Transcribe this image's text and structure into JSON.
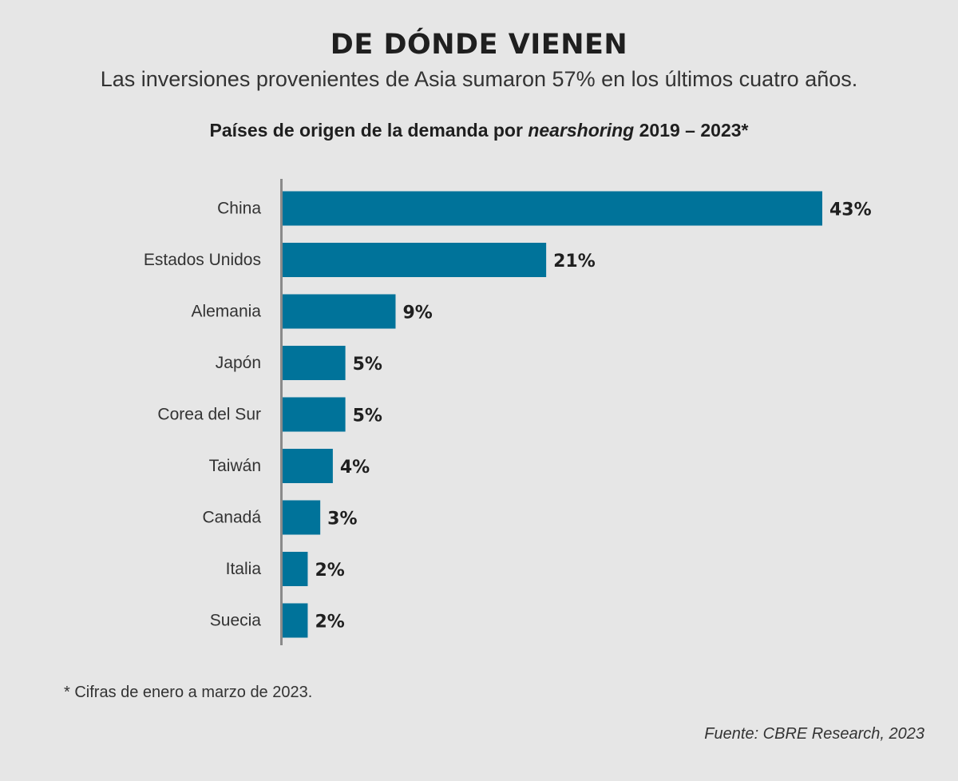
{
  "header": {
    "title": "DE DÓNDE VIENEN",
    "subtitle": "Las inversiones provenientes de Asia sumaron 57% en los últimos cuatro años."
  },
  "chart_header": {
    "prefix": "Países de origen de la demanda por ",
    "emphasis": "nearshoring",
    "suffix": " 2019 – 2023*"
  },
  "chart_data": {
    "type": "bar",
    "orientation": "horizontal",
    "title": "Países de origen de la demanda por nearshoring 2019 – 2023*",
    "categories": [
      "China",
      "Estados Unidos",
      "Alemania",
      "Japón",
      "Corea del Sur",
      "Taiwán",
      "Canadá",
      "Italia",
      "Suecia"
    ],
    "values": [
      43,
      21,
      9,
      5,
      5,
      4,
      3,
      2,
      2
    ],
    "value_labels": [
      "43%",
      "21%",
      "9%",
      "5%",
      "5%",
      "4%",
      "3%",
      "2%",
      "2%"
    ],
    "xlim": [
      0,
      43
    ],
    "unit": "%",
    "grid": false,
    "bar_color": "#00739a",
    "axis_color": "#8a8a8a"
  },
  "footer": {
    "footnote": "* Cifras de enero a marzo de 2023.",
    "source": "Fuente: CBRE Research, 2023"
  }
}
